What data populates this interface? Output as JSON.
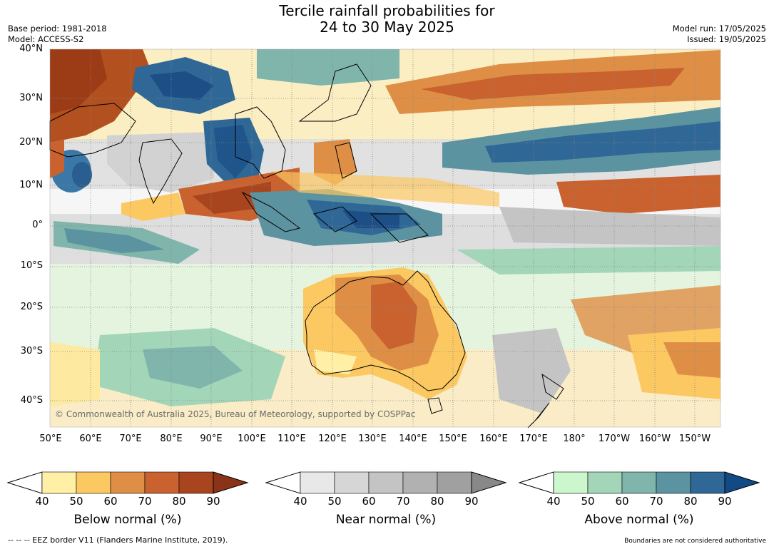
{
  "title_line1": "Tercile rainfall probabilities for",
  "title_line2": "24 to 30 May 2025",
  "meta_left": [
    "Base period: 1981-2018",
    "Model: ACCESS-S2"
  ],
  "meta_right": [
    "Model run: 17/05/2025",
    "Issued: 19/05/2025"
  ],
  "copyright": "© Commonwealth of Australia 2025, Bureau of Meteorology, supported by COSPPac",
  "lat_labels": [
    "40°N",
    "30°N",
    "20°N",
    "10°N",
    "0°",
    "10°S",
    "20°S",
    "30°S",
    "40°S"
  ],
  "lon_labels": [
    "50°E",
    "60°E",
    "70°E",
    "80°E",
    "90°E",
    "100°E",
    "110°E",
    "120°E",
    "130°E",
    "140°E",
    "150°E",
    "160°E",
    "170°E",
    "180°",
    "170°W",
    "160°W",
    "150°W"
  ],
  "colorbars": [
    {
      "label": "Below normal (%)",
      "ticks": [
        "40",
        "50",
        "60",
        "70",
        "80",
        "90"
      ],
      "colors": [
        "#fff0a6",
        "#fcc862",
        "#de8f45",
        "#c9622f",
        "#a8451f"
      ],
      "tip": "#8a3318"
    },
    {
      "label": "Near normal (%)",
      "ticks": [
        "40",
        "50",
        "60",
        "70",
        "80",
        "90"
      ],
      "colors": [
        "#e8e8e8",
        "#d6d6d6",
        "#c4c4c4",
        "#b1b1b1",
        "#a0a0a0"
      ],
      "tip": "#888888"
    },
    {
      "label": "Above normal (%)",
      "ticks": [
        "40",
        "50",
        "60",
        "70",
        "80",
        "90"
      ],
      "colors": [
        "#ccf7cc",
        "#a3d6b8",
        "#80b5ac",
        "#5b93a0",
        "#2f6796"
      ],
      "tip": "#124a86"
    }
  ],
  "footer_left": "--  --  -- EEZ border V11 (Flanders Marine Institute, 2019).",
  "footer_right": "Boundaries are not considered authoritative"
}
